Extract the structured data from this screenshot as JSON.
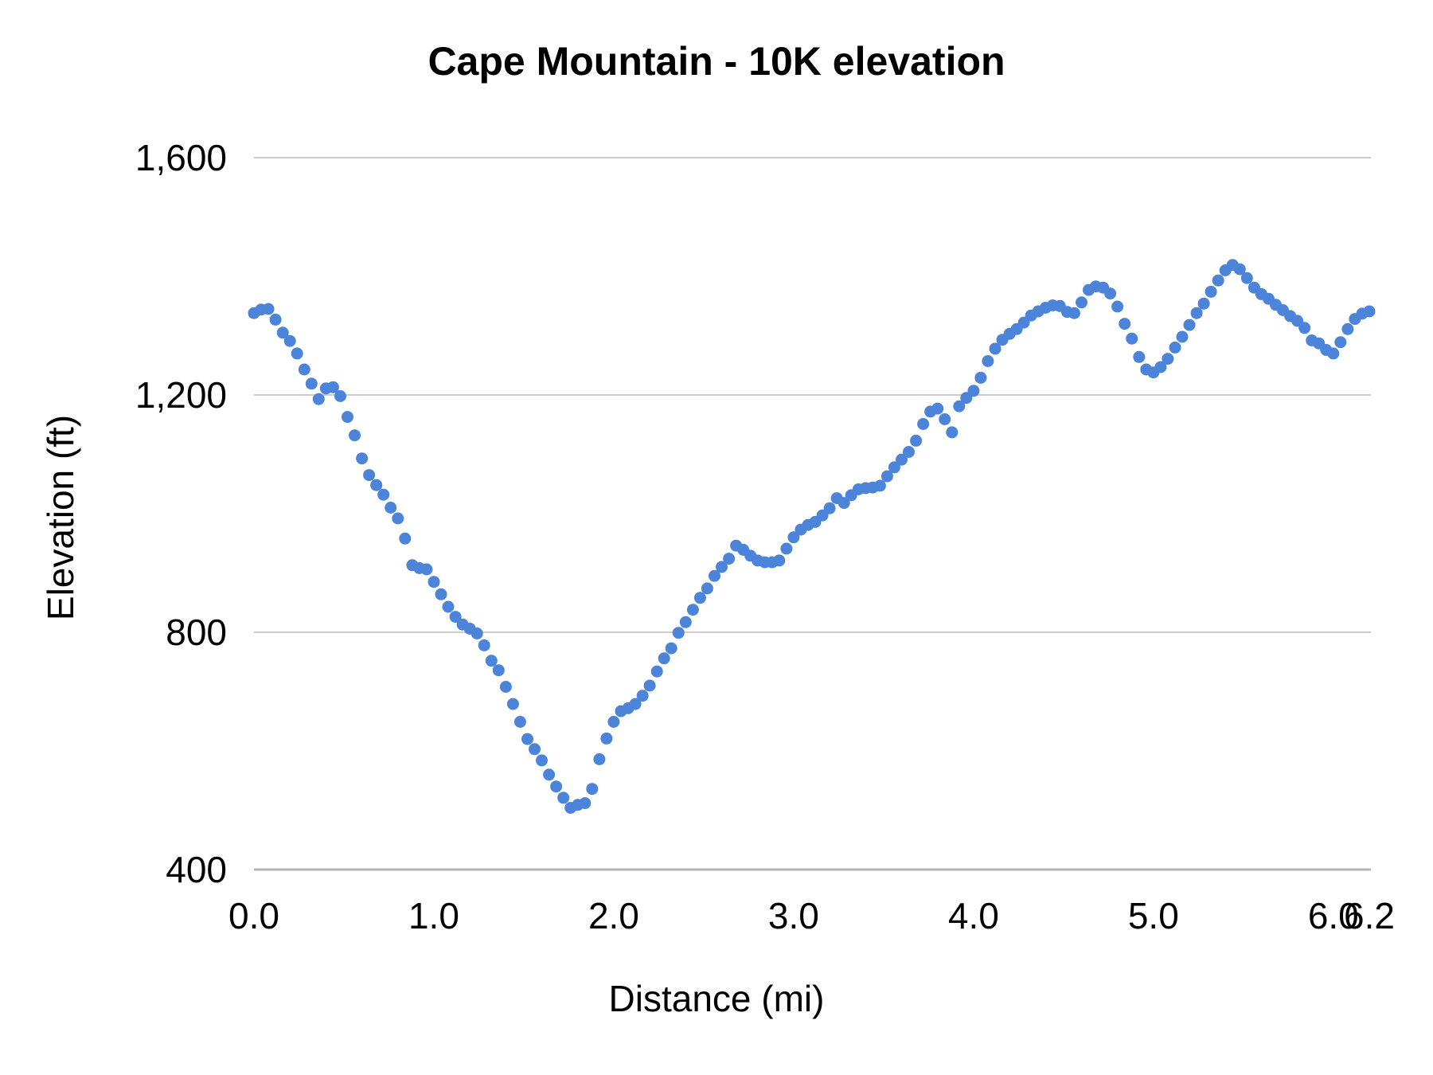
{
  "title": "Cape Mountain - 10K elevation",
  "axes": {
    "x": {
      "title": "Distance (mi)",
      "ticks": [
        {
          "value": 0,
          "label": "0.0"
        },
        {
          "value": 1,
          "label": "1.0"
        },
        {
          "value": 2,
          "label": "2.0"
        },
        {
          "value": 3,
          "label": "3.0"
        },
        {
          "value": 4,
          "label": "4.0"
        },
        {
          "value": 5,
          "label": "5.0"
        },
        {
          "value": 6,
          "label": "6.0"
        },
        {
          "value": 6.2,
          "label": "6.2"
        }
      ]
    },
    "y": {
      "title": "Elevation (ft)",
      "ticks": [
        {
          "value": 400,
          "label": "400"
        },
        {
          "value": 800,
          "label": "800"
        },
        {
          "value": 1200,
          "label": "1,200"
        },
        {
          "value": 1600,
          "label": "1,600"
        }
      ]
    }
  },
  "colors": {
    "point": "#4b84d8",
    "gridline": "#cccccc",
    "axis_line": "#b3b3b3",
    "text": "#000000",
    "background": "#ffffff"
  },
  "chart_data": {
    "type": "scatter",
    "title": "Cape Mountain - 10K elevation",
    "xlabel": "Distance (mi)",
    "ylabel": "Elevation (ft)",
    "xlim": [
      0,
      6.2
    ],
    "ylim": [
      400,
      1600
    ],
    "grid": "horizontal",
    "legend": "none",
    "point_color": "#4b84d8",
    "point_radius_px": 7.5,
    "x": [
      0,
      0.04,
      0.08,
      0.12,
      0.16,
      0.2,
      0.24,
      0.28,
      0.32,
      0.36,
      0.4,
      0.44,
      0.48,
      0.52,
      0.56,
      0.6,
      0.64,
      0.68,
      0.72,
      0.76,
      0.8,
      0.84,
      0.88,
      0.92,
      0.96,
      1,
      1.04,
      1.08,
      1.12,
      1.16,
      1.2,
      1.24,
      1.28,
      1.32,
      1.36,
      1.4,
      1.44,
      1.48,
      1.52,
      1.56,
      1.6,
      1.64,
      1.68,
      1.72,
      1.76,
      1.8,
      1.84,
      1.88,
      1.92,
      1.96,
      2,
      2.04,
      2.08,
      2.12,
      2.16,
      2.2,
      2.24,
      2.28,
      2.32,
      2.36,
      2.4,
      2.44,
      2.48,
      2.52,
      2.56,
      2.6,
      2.64,
      2.68,
      2.72,
      2.76,
      2.8,
      2.84,
      2.88,
      2.92,
      2.96,
      3,
      3.04,
      3.08,
      3.12,
      3.16,
      3.2,
      3.24,
      3.28,
      3.32,
      3.36,
      3.4,
      3.44,
      3.48,
      3.52,
      3.56,
      3.6,
      3.64,
      3.68,
      3.72,
      3.76,
      3.8,
      3.84,
      3.88,
      3.92,
      3.96,
      4,
      4.04,
      4.08,
      4.12,
      4.16,
      4.2,
      4.24,
      4.28,
      4.32,
      4.36,
      4.4,
      4.44,
      4.48,
      4.52,
      4.56,
      4.6,
      4.64,
      4.68,
      4.72,
      4.76,
      4.8,
      4.84,
      4.88,
      4.92,
      4.96,
      5,
      5.04,
      5.08,
      5.12,
      5.16,
      5.2,
      5.24,
      5.28,
      5.32,
      5.36,
      5.4,
      5.44,
      5.48,
      5.52,
      5.56,
      5.6,
      5.64,
      5.68,
      5.72,
      5.76,
      5.8,
      5.84,
      5.88,
      5.92,
      5.96,
      6,
      6.04,
      6.08,
      6.12,
      6.16,
      6.2
    ],
    "y": [
      1338,
      1344,
      1345,
      1327,
      1305,
      1291,
      1270,
      1243,
      1219,
      1193,
      1211,
      1213,
      1198,
      1163,
      1132,
      1093,
      1065,
      1048,
      1032,
      1010,
      992,
      958,
      913,
      908,
      906,
      885,
      864,
      843,
      826,
      813,
      806,
      798,
      778,
      752,
      736,
      708,
      679,
      649,
      620,
      603,
      584,
      560,
      540,
      521,
      504,
      509,
      512,
      536,
      586,
      621,
      649,
      667,
      672,
      679,
      693,
      710,
      734,
      756,
      773,
      799,
      817,
      838,
      858,
      874,
      895,
      910,
      924,
      946,
      939,
      929,
      921,
      918,
      918,
      921,
      941,
      960,
      973,
      981,
      986,
      997,
      1009,
      1026,
      1018,
      1031,
      1041,
      1043,
      1044,
      1047,
      1063,
      1078,
      1091,
      1104,
      1123,
      1151,
      1172,
      1177,
      1159,
      1137,
      1181,
      1195,
      1207,
      1229,
      1257,
      1278,
      1293,
      1303,
      1311,
      1322,
      1334,
      1341,
      1347,
      1351,
      1350,
      1340,
      1338,
      1356,
      1377,
      1383,
      1381,
      1371,
      1349,
      1320,
      1295,
      1264,
      1243,
      1238,
      1247,
      1261,
      1280,
      1298,
      1318,
      1338,
      1354,
      1374,
      1393,
      1410,
      1419,
      1412,
      1397,
      1381,
      1370,
      1362,
      1352,
      1343,
      1333,
      1325,
      1313,
      1292,
      1287,
      1276,
      1270,
      1289,
      1311,
      1328,
      1337,
      1341
    ]
  }
}
